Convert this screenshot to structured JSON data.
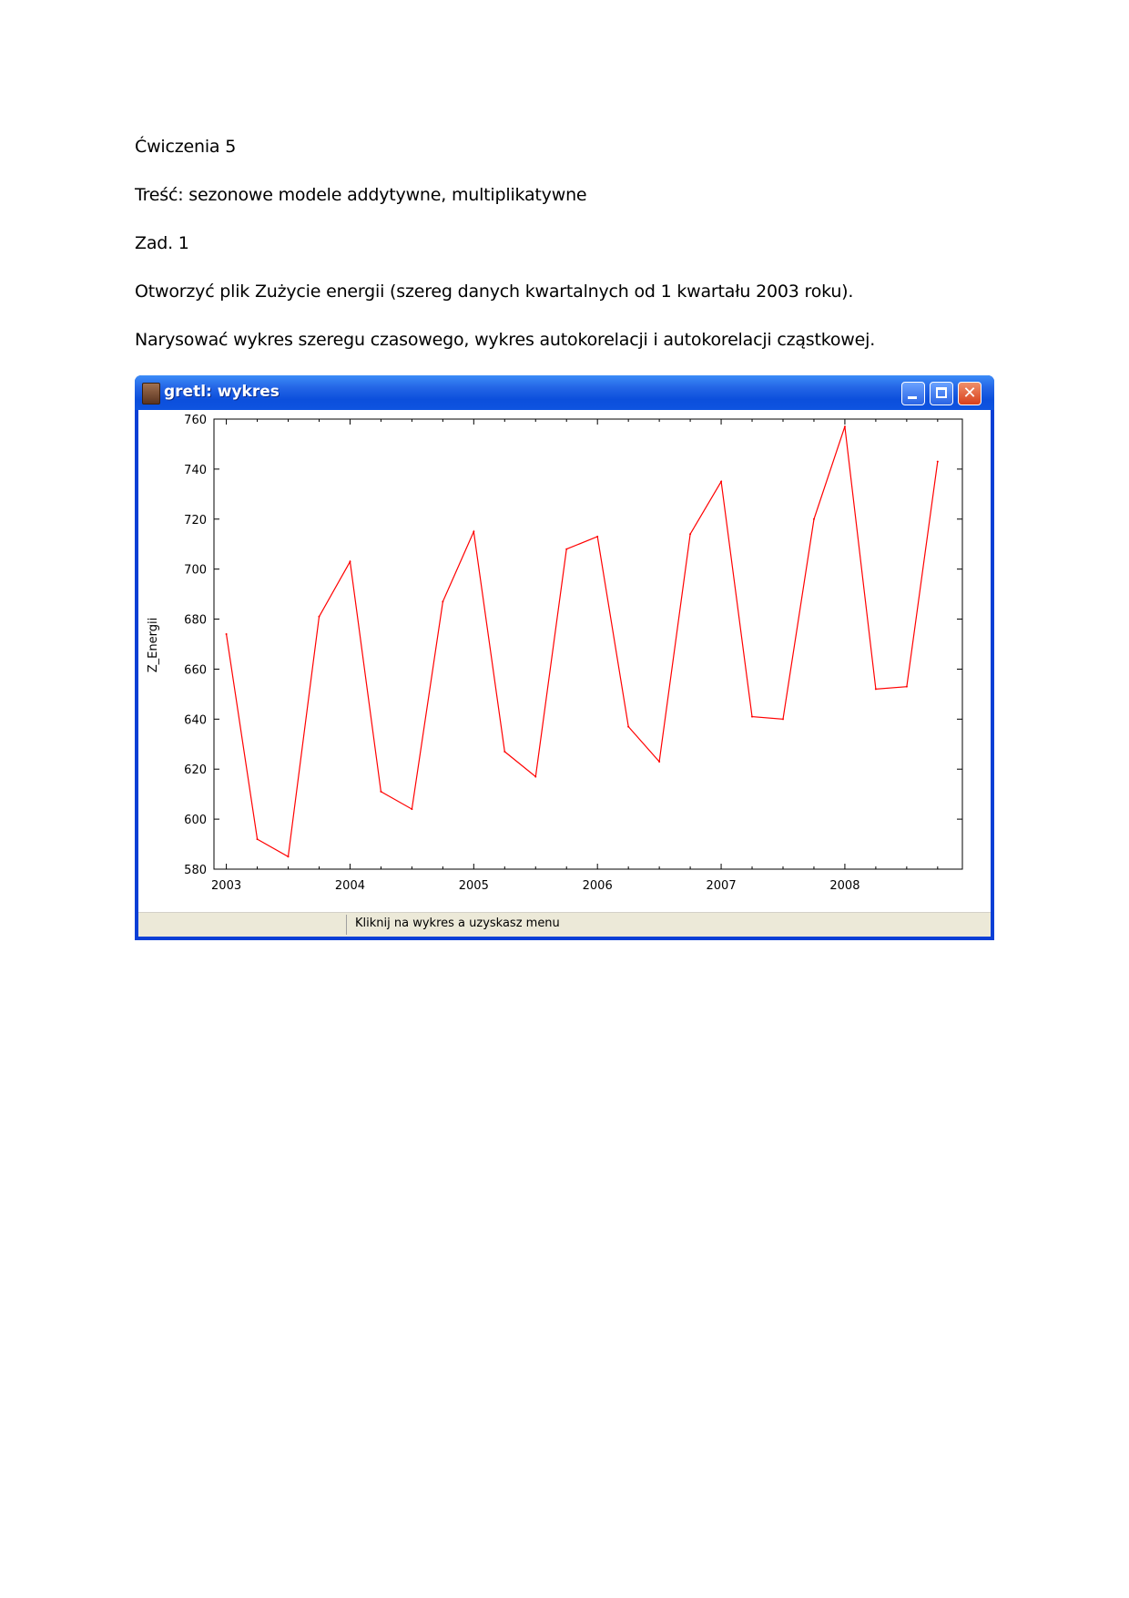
{
  "document": {
    "lines": [
      "Ćwiczenia 5",
      "Treść: sezonowe modele addytywne, multiplikatywne",
      "Zad. 1",
      "Otworzyć plik Zużycie energii (szereg danych kwartalnych od 1 kwartału 2003 roku).",
      "Narysować wykres szeregu czasowego, wykres autokorelacji i autokorelacji cząstkowej."
    ]
  },
  "window": {
    "title": "gretl: wykres",
    "icon": "gretl-app-icon",
    "controls": [
      "minimize-icon",
      "maximize-icon",
      "close-icon"
    ],
    "status_text": "Kliknij na wykres a uzyskasz menu"
  },
  "chart_data": {
    "type": "line",
    "title": "",
    "xlabel": "",
    "ylabel": "Z_Energii",
    "x_ticks": [
      "2003",
      "2004",
      "2005",
      "2006",
      "2007",
      "2008"
    ],
    "y_ticks": [
      580,
      600,
      620,
      640,
      660,
      680,
      700,
      720,
      740,
      760
    ],
    "ylim": [
      580,
      760
    ],
    "xlim": [
      2002.9,
      2008.95
    ],
    "grid": false,
    "line_color": "#ff0000",
    "x": [
      2003.0,
      2003.25,
      2003.5,
      2003.75,
      2004.0,
      2004.25,
      2004.5,
      2004.75,
      2005.0,
      2005.25,
      2005.5,
      2005.75,
      2006.0,
      2006.25,
      2006.5,
      2006.75,
      2007.0,
      2007.25,
      2007.5,
      2007.75,
      2008.0,
      2008.25,
      2008.5,
      2008.75
    ],
    "values": [
      674,
      592,
      585,
      681,
      703,
      611,
      604,
      687,
      715,
      627,
      617,
      708,
      713,
      637,
      623,
      714,
      735,
      641,
      640,
      720,
      757,
      652,
      653,
      743
    ]
  }
}
